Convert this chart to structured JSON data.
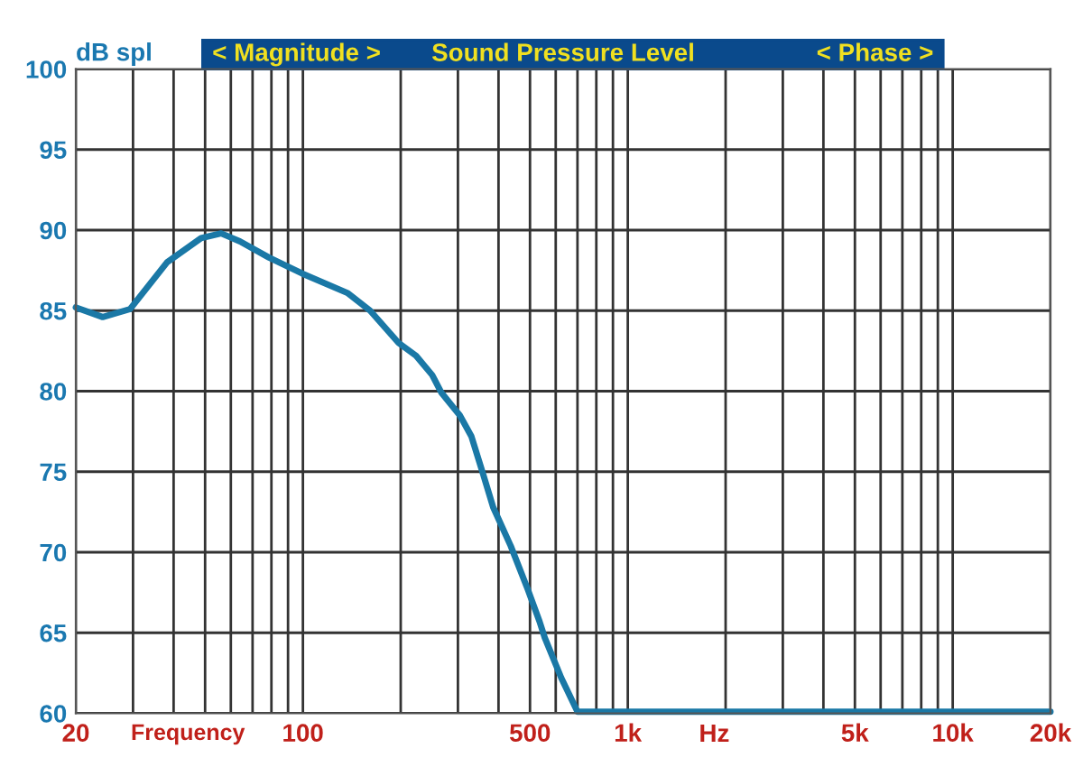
{
  "chart_data": {
    "type": "line",
    "title": "Sound Pressure Level",
    "xlabel": "Frequency",
    "ylabel": "dB spl",
    "annotations": [
      "< Magnitude >",
      "< Phase >",
      "Hz"
    ],
    "log": "x",
    "grid": true,
    "marker": "none",
    "line_style": "solid",
    "xlim": [
      20,
      20000
    ],
    "ylim": [
      60,
      100
    ],
    "xticks": [
      {
        "value": 20,
        "label": "20"
      },
      {
        "value": 30,
        "label": null
      },
      {
        "value": 40,
        "label": null
      },
      {
        "value": 50,
        "label": null
      },
      {
        "value": 60,
        "label": null
      },
      {
        "value": 70,
        "label": null
      },
      {
        "value": 80,
        "label": null
      },
      {
        "value": 90,
        "label": null
      },
      {
        "value": 100,
        "label": "100"
      },
      {
        "value": 200,
        "label": null
      },
      {
        "value": 300,
        "label": null
      },
      {
        "value": 400,
        "label": null
      },
      {
        "value": 500,
        "label": "500"
      },
      {
        "value": 600,
        "label": null
      },
      {
        "value": 700,
        "label": null
      },
      {
        "value": 800,
        "label": null
      },
      {
        "value": 900,
        "label": null
      },
      {
        "value": 1000,
        "label": "1k"
      },
      {
        "value": 2000,
        "label": null
      },
      {
        "value": 3000,
        "label": null
      },
      {
        "value": 4000,
        "label": null
      },
      {
        "value": 5000,
        "label": "5k"
      },
      {
        "value": 6000,
        "label": null
      },
      {
        "value": 7000,
        "label": null
      },
      {
        "value": 8000,
        "label": null
      },
      {
        "value": 9000,
        "label": null
      },
      {
        "value": 10000,
        "label": "10k"
      },
      {
        "value": 20000,
        "label": "20k"
      }
    ],
    "yticks": [
      60,
      65,
      70,
      75,
      80,
      85,
      90,
      95,
      100
    ],
    "series": [
      {
        "color": "#1a78a6",
        "x": [
          20,
          24.2,
          29.4,
          38.2,
          48.6,
          56,
          64,
          78.6,
          99.6,
          137,
          161,
          197,
          223,
          250,
          267,
          304,
          330,
          358,
          385,
          436,
          492,
          535,
          555,
          624,
          700,
          20000
        ],
        "values": [
          85.2,
          84.6,
          85.1,
          88.0,
          89.5,
          89.8,
          89.3,
          88.3,
          87.3,
          86.1,
          85.0,
          83.0,
          82.2,
          81.0,
          79.9,
          78.5,
          77.2,
          74.9,
          72.8,
          70.4,
          67.7,
          65.7,
          64.7,
          62.2,
          60.1,
          60.1
        ]
      }
    ]
  }
}
